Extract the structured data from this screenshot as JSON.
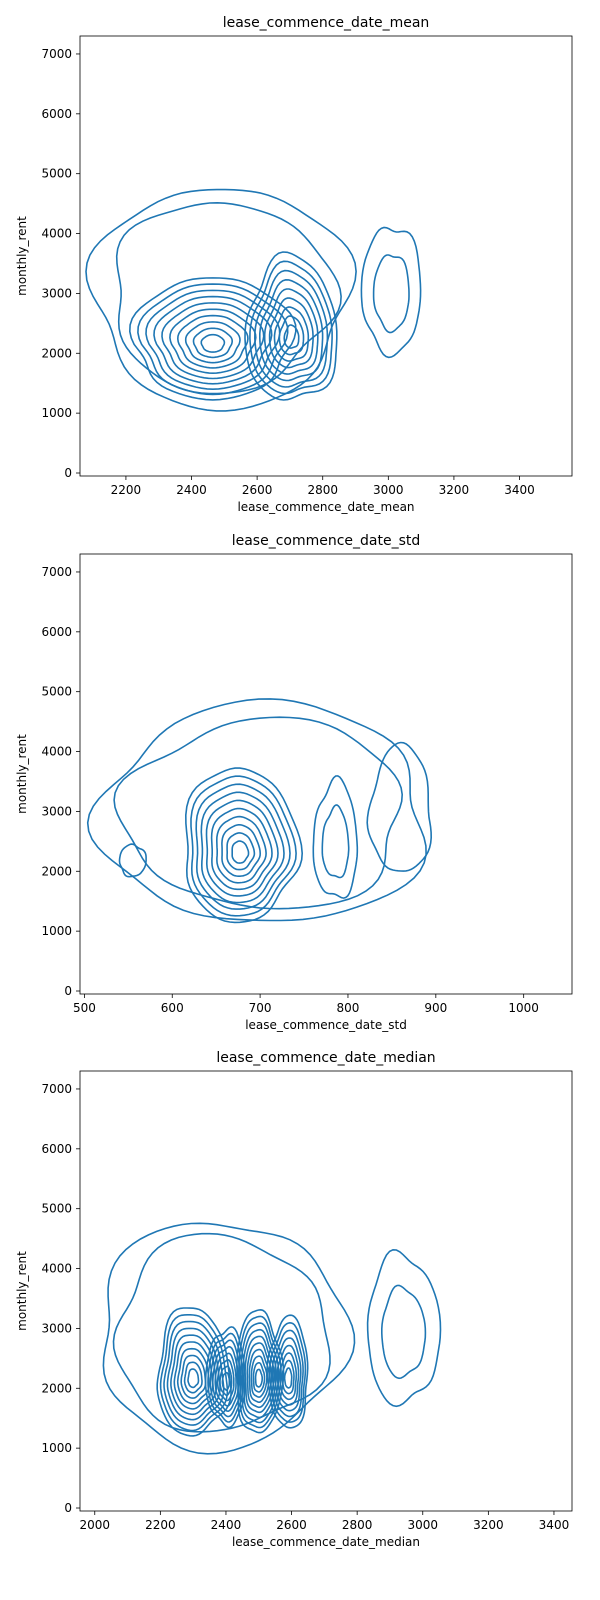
{
  "chart_data": [
    {
      "type": "kde-contour",
      "title": "lease_commence_date_mean",
      "xlabel": "lease_commence_date_mean",
      "ylabel": "monthly_rent",
      "xlim": [
        2060,
        3560
      ],
      "ylim": [
        -50,
        7300
      ],
      "xticks": [
        2200,
        2400,
        2600,
        2800,
        3000,
        3200,
        3400
      ],
      "yticks": [
        0,
        1000,
        2000,
        3000,
        4000,
        5000,
        6000,
        7000
      ],
      "color": "#1f77b4",
      "levels": 10,
      "blobs": [
        {
          "cx": 2465,
          "cy": 2150,
          "rx": 240,
          "ry": 1150,
          "levels": 10
        },
        {
          "cx": 2705,
          "cy": 2250,
          "rx": 140,
          "ry": 1350,
          "levels": 9
        },
        {
          "cx": 3010,
          "cy": 2950,
          "rx": 90,
          "ry": 1200,
          "levels": 2
        }
      ],
      "envelope": {
        "x": [
          2100,
          2880
        ],
        "y": [
          1100,
          4800
        ]
      }
    },
    {
      "type": "kde-contour",
      "title": "lease_commence_date_std",
      "xlabel": "lease_commence_date_std",
      "ylabel": "monthly_rent",
      "xlim": [
        495,
        1055
      ],
      "ylim": [
        -50,
        7300
      ],
      "xticks": [
        500,
        600,
        700,
        800,
        900,
        1000
      ],
      "yticks": [
        0,
        1000,
        2000,
        3000,
        4000,
        5000,
        6000,
        7000
      ],
      "color": "#1f77b4",
      "levels": 10,
      "blobs": [
        {
          "cx": 677,
          "cy": 2300,
          "rx": 65,
          "ry": 1450,
          "levels": 10
        },
        {
          "cx": 786,
          "cy": 2400,
          "rx": 25,
          "ry": 1100,
          "levels": 2
        },
        {
          "cx": 555,
          "cy": 2150,
          "rx": 15,
          "ry": 300,
          "levels": 1
        },
        {
          "cx": 860,
          "cy": 2900,
          "rx": 35,
          "ry": 1200,
          "levels": 1
        }
      ],
      "envelope": {
        "x": [
          520,
          890
        ],
        "y": [
          1100,
          4800
        ]
      }
    },
    {
      "type": "kde-contour",
      "title": "lease_commence_date_median",
      "xlabel": "lease_commence_date_median",
      "ylabel": "monthly_rent",
      "xlim": [
        1955,
        3455
      ],
      "ylim": [
        -50,
        7300
      ],
      "xticks": [
        2000,
        2200,
        2400,
        2600,
        2800,
        3000,
        3200,
        3400
      ],
      "yticks": [
        0,
        1000,
        2000,
        3000,
        4000,
        5000,
        6000,
        7000
      ],
      "color": "#1f77b4",
      "levels": 10,
      "blobs": [
        {
          "cx": 2300,
          "cy": 2150,
          "rx": 110,
          "ry": 1200,
          "levels": 10
        },
        {
          "cx": 2400,
          "cy": 2100,
          "rx": 60,
          "ry": 900,
          "levels": 8
        },
        {
          "cx": 2500,
          "cy": 2150,
          "rx": 70,
          "ry": 1150,
          "levels": 10
        },
        {
          "cx": 2590,
          "cy": 2150,
          "rx": 60,
          "ry": 1050,
          "levels": 8
        },
        {
          "cx": 2940,
          "cy": 2850,
          "rx": 110,
          "ry": 1400,
          "levels": 2
        }
      ],
      "envelope": {
        "x": [
          2010,
          2760
        ],
        "y": [
          1000,
          4800
        ]
      }
    }
  ]
}
